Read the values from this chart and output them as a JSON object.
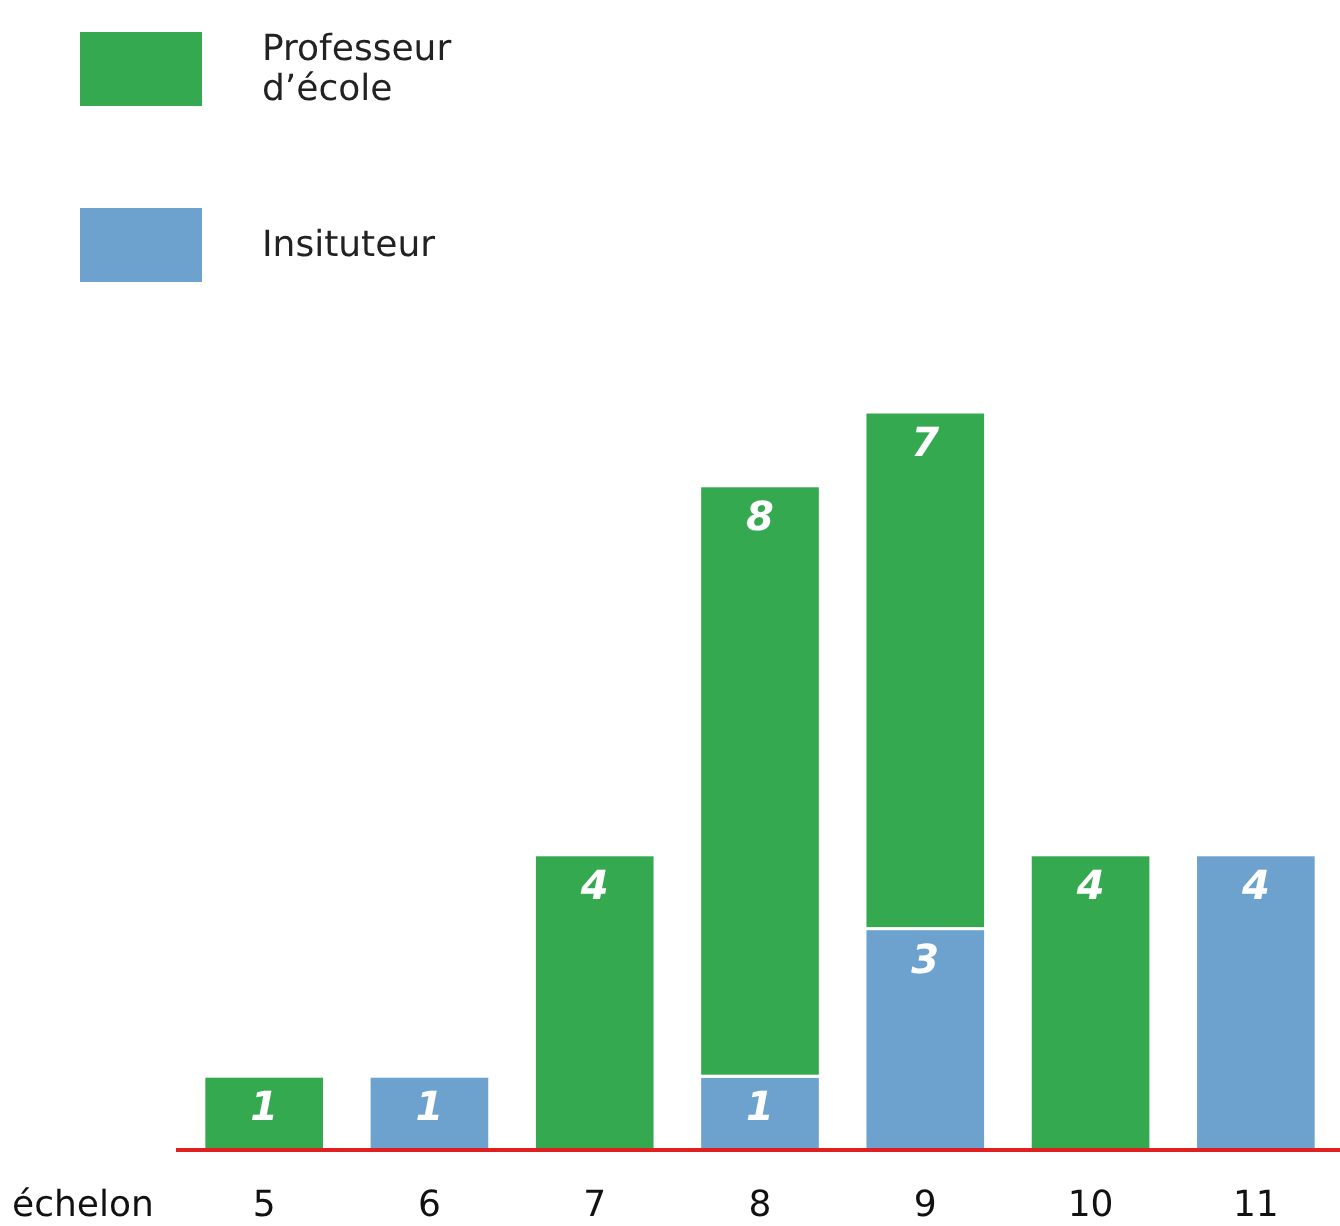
{
  "chart_data": {
    "type": "bar",
    "stacked": true,
    "xlabel": "échelon",
    "categories": [
      "5",
      "6",
      "7",
      "8",
      "9",
      "10",
      "11"
    ],
    "series": [
      {
        "name": "Insituteur",
        "color": "#6ca2cd",
        "values": [
          null,
          1,
          null,
          1,
          3,
          null,
          4
        ]
      },
      {
        "name": "Professeur d’école",
        "color": "#35a94f",
        "values": [
          1,
          null,
          4,
          8,
          7,
          4,
          null
        ]
      }
    ],
    "data_labels": true,
    "legend": "top left"
  }
}
